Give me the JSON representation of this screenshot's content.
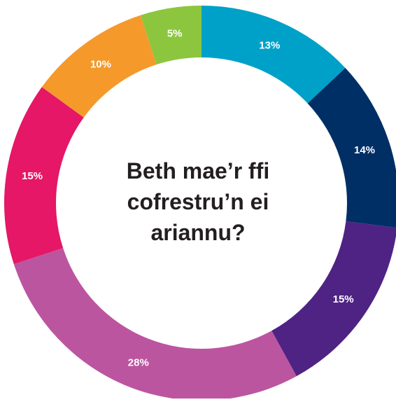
{
  "chart_data": {
    "type": "pie",
    "title": "Beth mae’r ffi cofrestru’n ei ariannu?",
    "start_angle_deg": 0,
    "direction": "clockwise",
    "donut": true,
    "slices": [
      {
        "label": "13%",
        "value": 13,
        "color": "#00a1c8"
      },
      {
        "label": "14%",
        "value": 14,
        "color": "#002f66"
      },
      {
        "label": "15%",
        "value": 15,
        "color": "#4e2384"
      },
      {
        "label": "28%",
        "value": 28,
        "color": "#bc55a0"
      },
      {
        "label": "15%",
        "value": 15,
        "color": "#e51766"
      },
      {
        "label": "10%",
        "value": 10,
        "color": "#f5992b"
      },
      {
        "label": "5%",
        "value": 5,
        "color": "#8cc63f"
      }
    ]
  }
}
